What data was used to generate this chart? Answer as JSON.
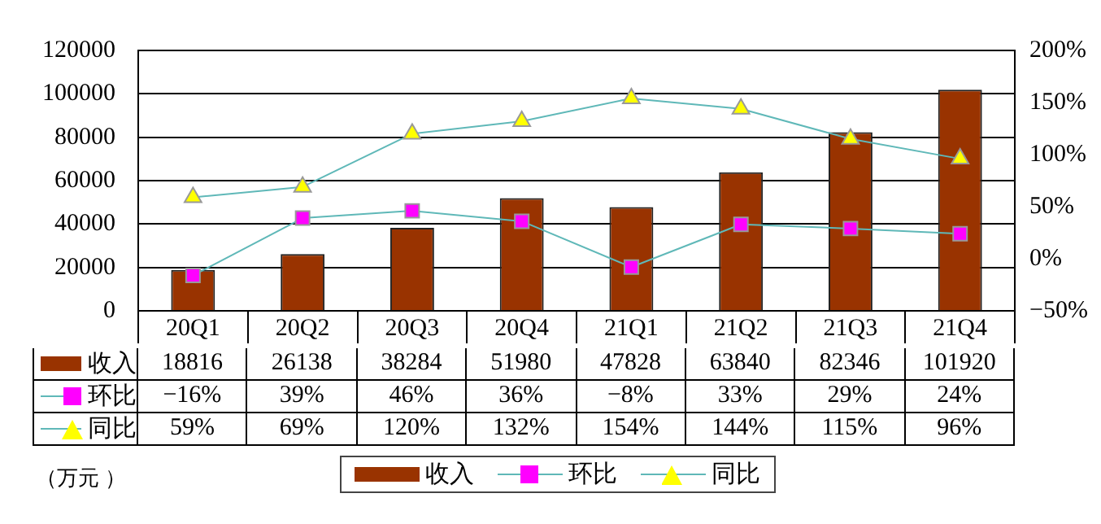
{
  "chart_data": {
    "type": "bar",
    "categories": [
      "20Q1",
      "20Q2",
      "20Q3",
      "20Q4",
      "21Q1",
      "21Q2",
      "21Q3",
      "21Q4"
    ],
    "series": [
      {
        "name": "收入",
        "color": "#993300",
        "values": [
          18816,
          26138,
          38284,
          51980,
          47828,
          63840,
          82346,
          101920
        ],
        "value_labels": [
          "18816",
          "26138",
          "38284",
          "51980",
          "47828",
          "63840",
          "82346",
          "101920"
        ]
      },
      {
        "name": "环比",
        "type": "line",
        "axis": "y2",
        "marker": "square",
        "color": "#ff00ff",
        "values": [
          -16,
          39,
          46,
          36,
          -8,
          33,
          29,
          24
        ],
        "value_labels": [
          "−16%",
          "39%",
          "46%",
          "36%",
          "−8%",
          "33%",
          "29%",
          "24%"
        ]
      },
      {
        "name": "同比",
        "type": "line",
        "axis": "y2",
        "marker": "triangle",
        "color": "#ffff00",
        "values": [
          59,
          69,
          120,
          132,
          154,
          144,
          115,
          96
        ],
        "value_labels": [
          "59%",
          "69%",
          "120%",
          "132%",
          "154%",
          "144%",
          "115%",
          "96%"
        ]
      }
    ],
    "ylim": [
      0,
      120000
    ],
    "yticks": [
      0,
      20000,
      40000,
      60000,
      80000,
      100000,
      120000
    ],
    "y2lim": [
      -50,
      200
    ],
    "y2ticks": [
      {
        "value": -50,
        "label": "−50%"
      },
      {
        "value": 0,
        "label": "0%"
      },
      {
        "value": 50,
        "label": "50%"
      },
      {
        "value": 100,
        "label": "100%"
      },
      {
        "value": 150,
        "label": "150%"
      },
      {
        "value": 200,
        "label": "200%"
      }
    ],
    "grid": "y",
    "legend": "bottom",
    "line_style": "solid",
    "annotations": [
      "（万元 ）"
    ]
  }
}
